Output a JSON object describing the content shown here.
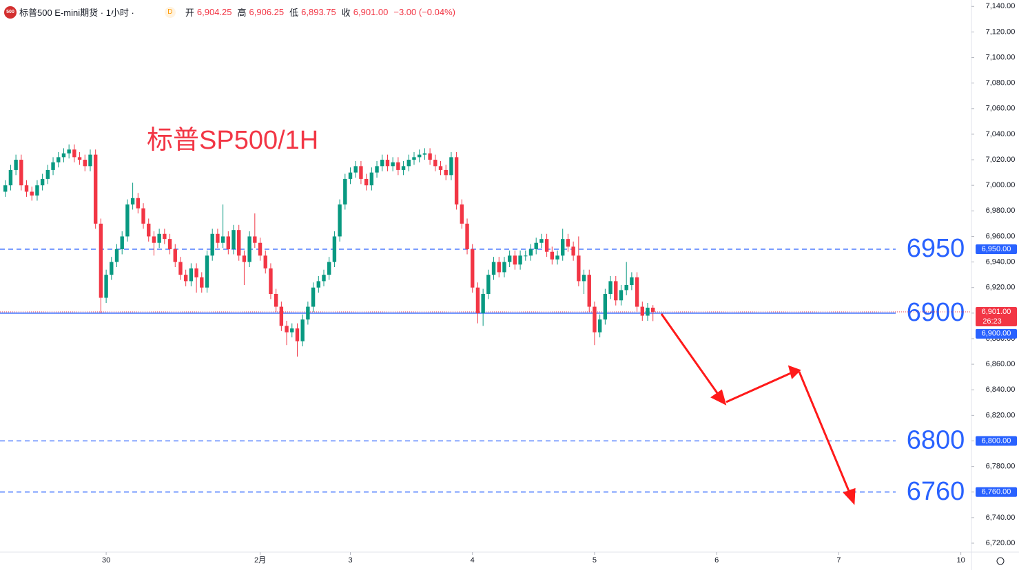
{
  "header": {
    "symbol_icon": "500",
    "name": "标普500 E-mini期货 · 1小时 ·",
    "badge": "D",
    "ohlc": [
      {
        "label": "开",
        "value": "6,904.25"
      },
      {
        "label": "高",
        "value": "6,906.25"
      },
      {
        "label": "低",
        "value": "6,893.75"
      },
      {
        "label": "收",
        "value": "6,901.00"
      }
    ],
    "change": "−3.00 (−0.04%)"
  },
  "chart_data": {
    "type": "candlestick",
    "annotation": "标普SP500/1H",
    "up_color": "#089981",
    "down_color": "#f23645",
    "level_color": "#2962ff",
    "xlim": [
      -1,
      182
    ],
    "ylim": [
      6713,
      7145
    ],
    "xticks": [
      {
        "value": 19,
        "label": "30"
      },
      {
        "value": 48,
        "label": "2月"
      },
      {
        "value": 65,
        "label": "3"
      },
      {
        "value": 88,
        "label": "4"
      },
      {
        "value": 111,
        "label": "5"
      },
      {
        "value": 134,
        "label": "6"
      },
      {
        "value": 157,
        "label": "7"
      },
      {
        "value": 180,
        "label": "10"
      }
    ],
    "yticks": [
      {
        "value": 6720,
        "label": "6,720.00"
      },
      {
        "value": 6740,
        "label": "6,740.00"
      },
      {
        "value": 6760,
        "label": "6,760.00"
      },
      {
        "value": 6780,
        "label": "6,780.00"
      },
      {
        "value": 6800,
        "label": "6,800.00"
      },
      {
        "value": 6820,
        "label": "6,820.00"
      },
      {
        "value": 6840,
        "label": "6,840.00"
      },
      {
        "value": 6860,
        "label": "6,860.00"
      },
      {
        "value": 6880,
        "label": "6,880.00"
      },
      {
        "value": 6900,
        "label": "6,900.00"
      },
      {
        "value": 6920,
        "label": "6,920.00"
      },
      {
        "value": 6940,
        "label": "6,940.00"
      },
      {
        "value": 6960,
        "label": "6,960.00"
      },
      {
        "value": 6980,
        "label": "6,980.00"
      },
      {
        "value": 7000,
        "label": "7,000.00"
      },
      {
        "value": 7020,
        "label": "7,020.00"
      },
      {
        "value": 7040,
        "label": "7,040.00"
      },
      {
        "value": 7060,
        "label": "7,060.00"
      },
      {
        "value": 7080,
        "label": "7,080.00"
      },
      {
        "value": 7100,
        "label": "7,100.00"
      },
      {
        "value": 7120,
        "label": "7,120.00"
      },
      {
        "value": 7140,
        "label": "7,140.00"
      }
    ],
    "levels": [
      {
        "value": 6950,
        "label": "6950",
        "axis_label": "6,950.00",
        "dashed": true
      },
      {
        "value": 6900,
        "label": "6900",
        "axis_label": "6,900.00",
        "dashed": false
      },
      {
        "value": 6800,
        "label": "6800",
        "axis_label": "6,800.00",
        "dashed": true
      },
      {
        "value": 6760,
        "label": "6760",
        "axis_label": "6,760.00",
        "dashed": true
      }
    ],
    "last_price": {
      "value": 6901,
      "label": "6,901.00",
      "countdown": "26:23"
    },
    "open": [
      6995,
      7000,
      7012,
      7020,
      7000,
      6995,
      6992,
      7000,
      7005,
      7012,
      7018,
      7022,
      7025,
      7028,
      7022,
      7020,
      7015,
      7024,
      6970,
      6912,
      6930,
      6940,
      6950,
      6960,
      6985,
      6990,
      6982,
      6970,
      6960,
      6955,
      6962,
      6958,
      6950,
      6940,
      6930,
      6925,
      6935,
      6928,
      6920,
      6945,
      6962,
      6955,
      6960,
      6950,
      6965,
      6945,
      6940,
      6960,
      6955,
      6945,
      6935,
      6915,
      6905,
      6890,
      6885,
      6888,
      6878,
      6895,
      6905,
      6920,
      6925,
      6930,
      6940,
      6960,
      6985,
      7005,
      7010,
      7015,
      7005,
      7000,
      7010,
      7015,
      7020,
      7015,
      7018,
      7012,
      7015,
      7020,
      7022,
      7024,
      7025,
      7020,
      7015,
      7012,
      7008,
      7022,
      6985,
      6970,
      6950,
      6920,
      6900,
      6915,
      6930,
      6940,
      6932,
      6940,
      6945,
      6938,
      6945,
      6945,
      6950,
      6955,
      6958,
      6948,
      6942,
      6945,
      6958,
      6952,
      6945,
      6925,
      6930,
      6905,
      6885,
      6895,
      6915,
      6925,
      6910,
      6918,
      6922,
      6928,
      6905,
      6898,
      6904.25
    ],
    "high": [
      7004,
      7016,
      7024,
      7024,
      7004,
      6999,
      7004,
      7009,
      7016,
      7022,
      7026,
      7029,
      7032,
      7032,
      7026,
      7024,
      7028,
      7028,
      6974,
      6934,
      6944,
      6954,
      6964,
      6989,
      7002,
      6994,
      6986,
      6974,
      6964,
      6966,
      6966,
      6962,
      6954,
      6944,
      6934,
      6939,
      6939,
      6932,
      6949,
      6966,
      6966,
      6985,
      6964,
      6969,
      6969,
      6949,
      6964,
      6978,
      6959,
      6949,
      6939,
      6919,
      6909,
      6894,
      6892,
      6892,
      6899,
      6909,
      6924,
      6929,
      6934,
      6944,
      6964,
      6989,
      7009,
      7014,
      7019,
      7019,
      7009,
      7014,
      7019,
      7024,
      7024,
      7022,
      7022,
      7019,
      7024,
      7026,
      7028,
      7029,
      7029,
      7024,
      7019,
      7016,
      7026,
      7026,
      6989,
      6974,
      6954,
      6924,
      6919,
      6934,
      6944,
      6944,
      6944,
      6949,
      6949,
      6949,
      6949,
      6954,
      6959,
      6962,
      6962,
      6952,
      6949,
      6966,
      6962,
      6956,
      6960,
      6934,
      6934,
      6909,
      6899,
      6919,
      6929,
      6929,
      6922,
      6940,
      6932,
      6932,
      6909,
      6908,
      6906.25
    ],
    "low": [
      6991,
      6996,
      7008,
      6996,
      6991,
      6988,
      6988,
      6996,
      7001,
      7008,
      7014,
      7018,
      7021,
      7018,
      7016,
      7011,
      7011,
      6966,
      6900,
      6908,
      6926,
      6936,
      6946,
      6956,
      6981,
      6978,
      6966,
      6956,
      6945,
      6951,
      6954,
      6946,
      6936,
      6926,
      6921,
      6921,
      6916,
      6916,
      6916,
      6941,
      6951,
      6951,
      6946,
      6946,
      6941,
      6922,
      6936,
      6951,
      6941,
      6931,
      6911,
      6901,
      6886,
      6875,
      6881,
      6866,
      6874,
      6891,
      6901,
      6916,
      6921,
      6926,
      6936,
      6956,
      6981,
      7001,
      7006,
      7001,
      6996,
      6996,
      7006,
      7011,
      7011,
      7011,
      7008,
      7008,
      7011,
      7016,
      7018,
      7020,
      7016,
      7011,
      7008,
      7004,
      7004,
      6981,
      6966,
      6946,
      6916,
      6892,
      6890,
      6911,
      6926,
      6928,
      6928,
      6936,
      6934,
      6934,
      6941,
      6941,
      6946,
      6951,
      6944,
      6938,
      6938,
      6941,
      6948,
      6941,
      6921,
      6915,
      6901,
      6875,
      6881,
      6891,
      6911,
      6906,
      6906,
      6914,
      6918,
      6901,
      6894,
      6894,
      6893.75
    ],
    "close": [
      7000,
      7012,
      7020,
      7000,
      6995,
      6992,
      7000,
      7005,
      7012,
      7018,
      7022,
      7025,
      7028,
      7022,
      7020,
      7015,
      7024,
      6970,
      6912,
      6930,
      6940,
      6950,
      6960,
      6985,
      6990,
      6982,
      6970,
      6960,
      6955,
      6962,
      6958,
      6950,
      6940,
      6930,
      6925,
      6935,
      6928,
      6920,
      6945,
      6962,
      6955,
      6960,
      6950,
      6965,
      6945,
      6940,
      6960,
      6955,
      6945,
      6935,
      6915,
      6905,
      6890,
      6885,
      6888,
      6878,
      6895,
      6905,
      6920,
      6925,
      6930,
      6940,
      6960,
      6985,
      7005,
      7010,
      7015,
      7005,
      7000,
      7010,
      7015,
      7020,
      7015,
      7018,
      7012,
      7015,
      7020,
      7022,
      7024,
      7025,
      7020,
      7015,
      7012,
      7008,
      7022,
      6985,
      6970,
      6950,
      6920,
      6900,
      6915,
      6930,
      6940,
      6932,
      6940,
      6945,
      6938,
      6945,
      6945,
      6950,
      6955,
      6958,
      6948,
      6942,
      6945,
      6958,
      6952,
      6945,
      6925,
      6930,
      6905,
      6885,
      6895,
      6915,
      6925,
      6910,
      6918,
      6922,
      6928,
      6905,
      6898,
      6904.25,
      6901
    ]
  }
}
